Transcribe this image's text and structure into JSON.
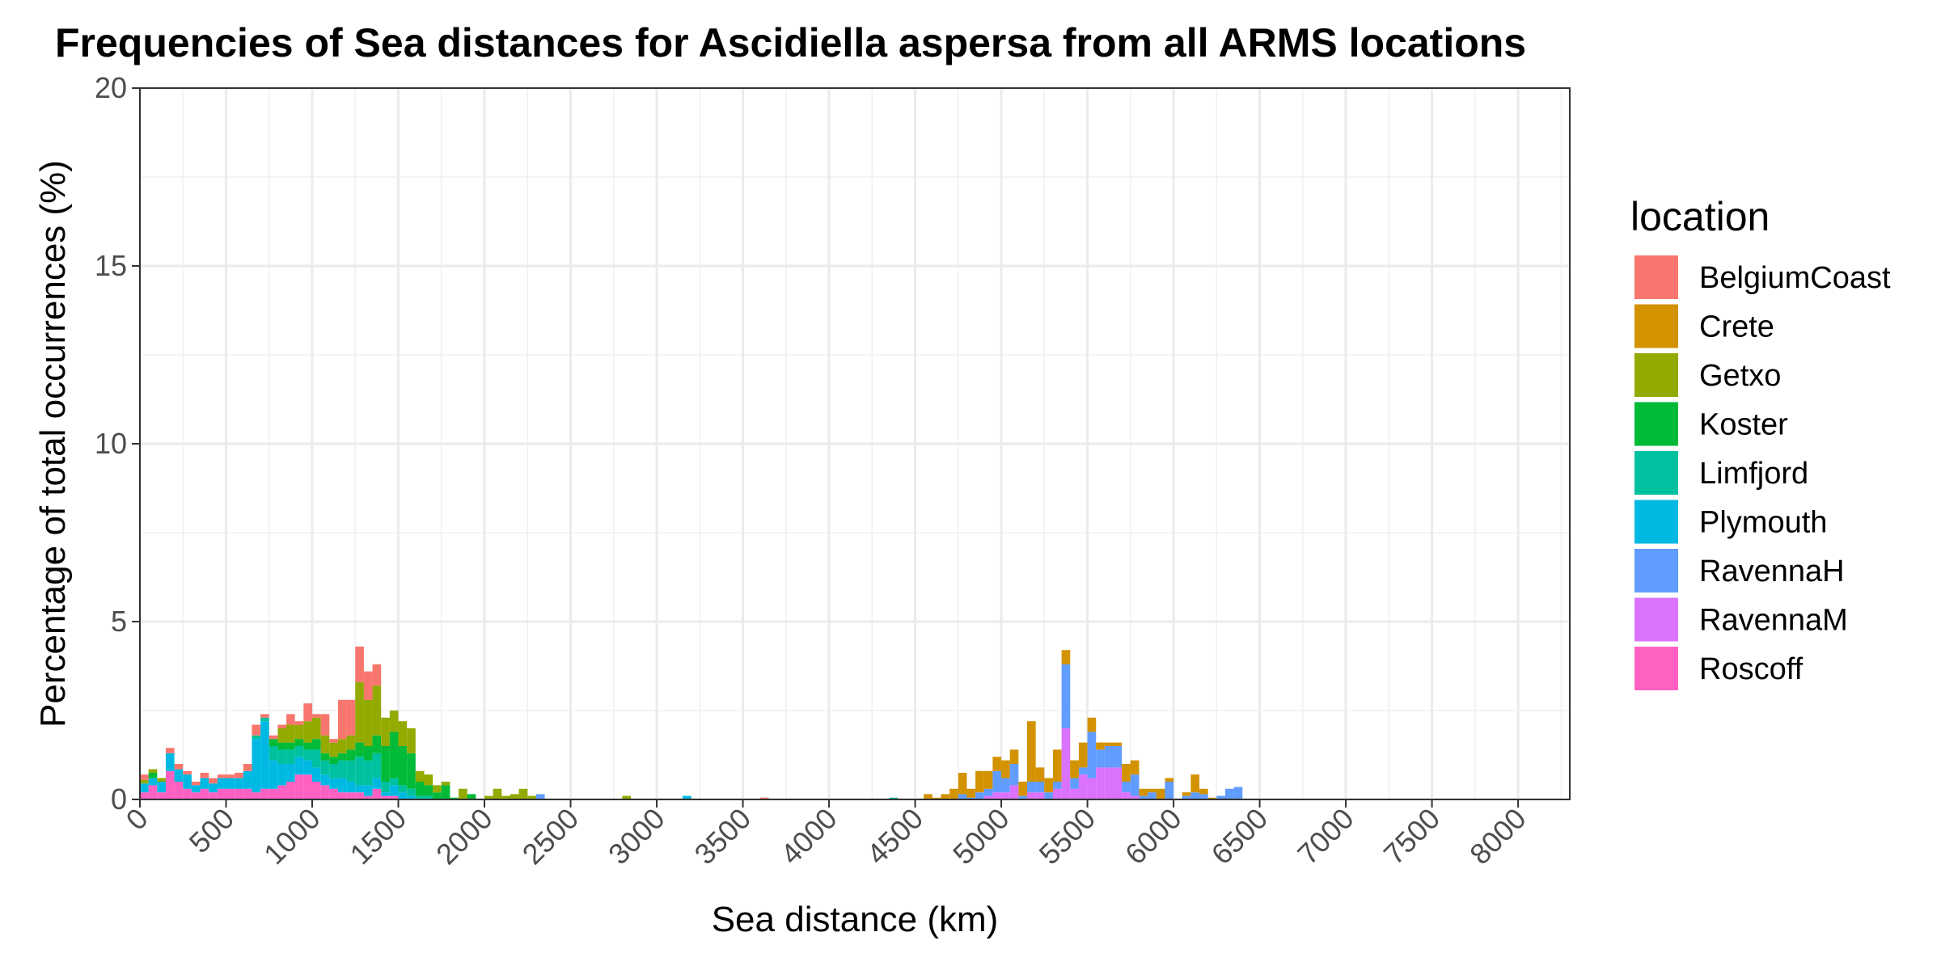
{
  "chart_data": {
    "type": "bar",
    "stacked": true,
    "title": "Frequencies of Sea distances for Ascidiella aspersa from all ARMS locations",
    "xlabel": "Sea distance (km)",
    "ylabel": "Percentage of total occurrences (%)",
    "xlim": [
      0,
      8300
    ],
    "ylim": [
      0,
      20
    ],
    "xticks": [
      0,
      500,
      1000,
      1500,
      2000,
      2500,
      3000,
      3500,
      4000,
      4500,
      5000,
      5500,
      6000,
      6500,
      7000,
      7500,
      8000
    ],
    "xtick_labels": [
      "0",
      "500",
      "1000",
      "1500",
      "2000",
      "2500",
      "3000",
      "3500",
      "4000",
      "4500",
      "5000",
      "5500",
      "6000",
      "6500",
      "7000",
      "7500",
      "8000"
    ],
    "yticks": [
      0,
      5,
      10,
      15,
      20
    ],
    "ytick_labels": [
      "0",
      "5",
      "10",
      "15",
      "20"
    ],
    "grid": true,
    "bin_width": 50,
    "legend": {
      "title": "location",
      "position": "right",
      "entries": [
        {
          "name": "BelgiumCoast",
          "color": "#F8766D"
        },
        {
          "name": "Crete",
          "color": "#D39200"
        },
        {
          "name": "Getxo",
          "color": "#93AA00"
        },
        {
          "name": "Koster",
          "color": "#00BA38"
        },
        {
          "name": "Limfjord",
          "color": "#00C19F"
        },
        {
          "name": "Plymouth",
          "color": "#00B9E3"
        },
        {
          "name": "RavennaH",
          "color": "#619CFF"
        },
        {
          "name": "RavennaM",
          "color": "#DB72FB"
        },
        {
          "name": "Roscoff",
          "color": "#FF61C3"
        }
      ]
    },
    "series_order": [
      "BelgiumCoast",
      "Crete",
      "Getxo",
      "Koster",
      "Limfjord",
      "Plymouth",
      "RavennaH",
      "RavennaM",
      "Roscoff"
    ],
    "bins": [
      {
        "x": 25,
        "values": {
          "Roscoff": 0.2,
          "Plymouth": 0.25,
          "Getxo": 0.1,
          "BelgiumCoast": 0.15
        }
      },
      {
        "x": 75,
        "values": {
          "Roscoff": 0.4,
          "Plymouth": 0.2,
          "Koster": 0.15,
          "Getxo": 0.1
        }
      },
      {
        "x": 125,
        "values": {
          "Roscoff": 0.2,
          "Plymouth": 0.3,
          "Getxo": 0.1
        }
      },
      {
        "x": 175,
        "values": {
          "Roscoff": 0.8,
          "Plymouth": 0.5,
          "BelgiumCoast": 0.15
        }
      },
      {
        "x": 225,
        "values": {
          "Roscoff": 0.5,
          "Plymouth": 0.35,
          "BelgiumCoast": 0.15
        }
      },
      {
        "x": 275,
        "values": {
          "Roscoff": 0.3,
          "Plymouth": 0.4,
          "BelgiumCoast": 0.1
        }
      },
      {
        "x": 325,
        "values": {
          "Roscoff": 0.2,
          "Plymouth": 0.2,
          "BelgiumCoast": 0.1
        }
      },
      {
        "x": 375,
        "values": {
          "Roscoff": 0.3,
          "Plymouth": 0.3,
          "BelgiumCoast": 0.15
        }
      },
      {
        "x": 425,
        "values": {
          "Roscoff": 0.2,
          "Plymouth": 0.25,
          "BelgiumCoast": 0.15
        }
      },
      {
        "x": 475,
        "values": {
          "Roscoff": 0.3,
          "Plymouth": 0.3,
          "BelgiumCoast": 0.1
        }
      },
      {
        "x": 525,
        "values": {
          "Roscoff": 0.3,
          "Plymouth": 0.3,
          "BelgiumCoast": 0.1
        }
      },
      {
        "x": 575,
        "values": {
          "Roscoff": 0.3,
          "Plymouth": 0.3,
          "BelgiumCoast": 0.15
        }
      },
      {
        "x": 625,
        "values": {
          "Roscoff": 0.3,
          "Plymouth": 0.5,
          "BelgiumCoast": 0.2
        }
      },
      {
        "x": 675,
        "values": {
          "Roscoff": 0.2,
          "Plymouth": 1.5,
          "Limfjord": 0.1,
          "BelgiumCoast": 0.3
        }
      },
      {
        "x": 725,
        "values": {
          "Roscoff": 0.3,
          "Plymouth": 1.9,
          "Limfjord": 0.1,
          "BelgiumCoast": 0.1
        }
      },
      {
        "x": 775,
        "values": {
          "Roscoff": 0.3,
          "Plymouth": 0.8,
          "Limfjord": 0.4,
          "Koster": 0.2,
          "BelgiumCoast": 0.1
        }
      },
      {
        "x": 825,
        "values": {
          "Roscoff": 0.4,
          "Plymouth": 0.6,
          "Limfjord": 0.4,
          "Koster": 0.2,
          "Getxo": 0.4,
          "BelgiumCoast": 0.1
        }
      },
      {
        "x": 875,
        "values": {
          "Roscoff": 0.5,
          "Plymouth": 0.5,
          "Limfjord": 0.4,
          "Koster": 0.2,
          "Getxo": 0.5,
          "BelgiumCoast": 0.3
        }
      },
      {
        "x": 925,
        "values": {
          "Roscoff": 0.7,
          "Plymouth": 0.5,
          "Limfjord": 0.3,
          "Koster": 0.2,
          "Getxo": 0.4,
          "BelgiumCoast": 0.1
        }
      },
      {
        "x": 975,
        "values": {
          "Roscoff": 0.7,
          "Plymouth": 0.4,
          "Limfjord": 0.3,
          "Koster": 0.2,
          "Getxo": 0.6,
          "BelgiumCoast": 0.5
        }
      },
      {
        "x": 1025,
        "values": {
          "Roscoff": 0.5,
          "Plymouth": 0.4,
          "Limfjord": 0.5,
          "Koster": 0.3,
          "Getxo": 0.6,
          "BelgiumCoast": 0.1
        }
      },
      {
        "x": 1075,
        "values": {
          "Roscoff": 0.4,
          "Plymouth": 0.3,
          "Limfjord": 0.4,
          "Koster": 0.2,
          "Getxo": 0.5,
          "BelgiumCoast": 0.6
        }
      },
      {
        "x": 1125,
        "values": {
          "Roscoff": 0.3,
          "Plymouth": 0.3,
          "Limfjord": 0.4,
          "Koster": 0.2,
          "Getxo": 0.4,
          "BelgiumCoast": 0.1
        }
      },
      {
        "x": 1175,
        "values": {
          "Roscoff": 0.2,
          "Plymouth": 0.4,
          "Limfjord": 0.5,
          "Koster": 0.2,
          "Getxo": 0.4,
          "BelgiumCoast": 1.1
        }
      },
      {
        "x": 1225,
        "values": {
          "Roscoff": 0.2,
          "Plymouth": 0.3,
          "Limfjord": 0.6,
          "Koster": 0.3,
          "Getxo": 0.4,
          "BelgiumCoast": 1.0
        }
      },
      {
        "x": 1275,
        "values": {
          "Roscoff": 0.2,
          "Plymouth": 0.2,
          "Limfjord": 0.8,
          "Koster": 0.4,
          "Getxo": 1.7,
          "BelgiumCoast": 1.0
        }
      },
      {
        "x": 1325,
        "values": {
          "Roscoff": 0.1,
          "Plymouth": 0.3,
          "Limfjord": 0.7,
          "Koster": 0.4,
          "Getxo": 1.3,
          "BelgiumCoast": 0.8
        }
      },
      {
        "x": 1375,
        "values": {
          "Roscoff": 0.3,
          "Plymouth": 0.3,
          "Limfjord": 0.7,
          "Koster": 0.5,
          "Getxo": 1.4,
          "BelgiumCoast": 0.6
        }
      },
      {
        "x": 1425,
        "values": {
          "Roscoff": 0.1,
          "Plymouth": 0.1,
          "Limfjord": 0.3,
          "Koster": 1.0,
          "Getxo": 0.8
        }
      },
      {
        "x": 1475,
        "values": {
          "Roscoff": 0.1,
          "Plymouth": 0.3,
          "Limfjord": 0.2,
          "Koster": 1.3,
          "Getxo": 0.6
        }
      },
      {
        "x": 1525,
        "values": {
          "Plymouth": 0.2,
          "Limfjord": 0.2,
          "Koster": 1.1,
          "Getxo": 0.7
        }
      },
      {
        "x": 1575,
        "values": {
          "Plymouth": 0.1,
          "Limfjord": 0.2,
          "Koster": 1.0,
          "Getxo": 0.7
        }
      },
      {
        "x": 1625,
        "values": {
          "Limfjord": 0.1,
          "Koster": 0.4,
          "Getxo": 0.3
        }
      },
      {
        "x": 1675,
        "values": {
          "Limfjord": 0.1,
          "Koster": 0.3,
          "Getxo": 0.3
        }
      },
      {
        "x": 1725,
        "values": {
          "Koster": 0.2,
          "Getxo": 0.2
        }
      },
      {
        "x": 1775,
        "values": {
          "Koster": 0.4,
          "Getxo": 0.1
        }
      },
      {
        "x": 1825,
        "values": {
          "Koster": 0.05
        }
      },
      {
        "x": 1875,
        "values": {
          "Getxo": 0.3
        }
      },
      {
        "x": 1925,
        "values": {
          "Koster": 0.15
        }
      },
      {
        "x": 2025,
        "values": {
          "Getxo": 0.1
        }
      },
      {
        "x": 2075,
        "values": {
          "Getxo": 0.3
        }
      },
      {
        "x": 2125,
        "values": {
          "Getxo": 0.1
        }
      },
      {
        "x": 2175,
        "values": {
          "Getxo": 0.15
        }
      },
      {
        "x": 2225,
        "values": {
          "Getxo": 0.3
        }
      },
      {
        "x": 2275,
        "values": {
          "Getxo": 0.1
        }
      },
      {
        "x": 2325,
        "values": {
          "RavennaH": 0.15
        }
      },
      {
        "x": 2825,
        "values": {
          "Getxo": 0.1
        }
      },
      {
        "x": 3175,
        "values": {
          "Plymouth": 0.1
        }
      },
      {
        "x": 3625,
        "values": {
          "BelgiumCoast": 0.05
        }
      },
      {
        "x": 4375,
        "values": {
          "Limfjord": 0.05
        }
      },
      {
        "x": 4575,
        "values": {
          "Crete": 0.15
        }
      },
      {
        "x": 4625,
        "values": {
          "Crete": 0.05
        }
      },
      {
        "x": 4675,
        "values": {
          "Crete": 0.15
        }
      },
      {
        "x": 4725,
        "values": {
          "Crete": 0.3
        }
      },
      {
        "x": 4775,
        "values": {
          "Crete": 0.6,
          "RavennaH": 0.15
        }
      },
      {
        "x": 4825,
        "values": {
          "Crete": 0.25,
          "RavennaH": 0.05
        }
      },
      {
        "x": 4875,
        "values": {
          "Crete": 0.6,
          "RavennaH": 0.2
        }
      },
      {
        "x": 4925,
        "values": {
          "Crete": 0.5,
          "RavennaH": 0.2,
          "RavennaM": 0.1
        }
      },
      {
        "x": 4975,
        "values": {
          "Crete": 0.4,
          "RavennaH": 0.6,
          "RavennaM": 0.2
        }
      },
      {
        "x": 5025,
        "values": {
          "Crete": 0.5,
          "RavennaH": 0.4,
          "RavennaM": 0.2
        }
      },
      {
        "x": 5075,
        "values": {
          "Crete": 0.4,
          "RavennaH": 0.6,
          "RavennaM": 0.4
        }
      },
      {
        "x": 5125,
        "values": {
          "Crete": 0.4,
          "RavennaH": 0.1
        }
      },
      {
        "x": 5175,
        "values": {
          "Crete": 1.7,
          "RavennaH": 0.3,
          "RavennaM": 0.2
        }
      },
      {
        "x": 5225,
        "values": {
          "Crete": 0.4,
          "RavennaH": 0.3,
          "RavennaM": 0.2
        }
      },
      {
        "x": 5275,
        "values": {
          "Crete": 0.4,
          "RavennaH": 0.2
        }
      },
      {
        "x": 5325,
        "values": {
          "Crete": 0.9,
          "RavennaH": 0.2,
          "RavennaM": 0.3
        }
      },
      {
        "x": 5375,
        "values": {
          "Crete": 0.4,
          "RavennaH": 1.8,
          "RavennaM": 2.0
        }
      },
      {
        "x": 5425,
        "values": {
          "Crete": 0.5,
          "RavennaH": 0.3,
          "RavennaM": 0.3
        }
      },
      {
        "x": 5475,
        "values": {
          "Crete": 0.7,
          "RavennaH": 0.2,
          "RavennaM": 0.7
        }
      },
      {
        "x": 5525,
        "values": {
          "Crete": 0.4,
          "RavennaH": 1.3,
          "RavennaM": 0.6
        }
      },
      {
        "x": 5575,
        "values": {
          "Crete": 0.2,
          "RavennaH": 0.5,
          "RavennaM": 0.9
        }
      },
      {
        "x": 5625,
        "values": {
          "Crete": 0.1,
          "RavennaH": 0.6,
          "RavennaM": 0.9
        }
      },
      {
        "x": 5675,
        "values": {
          "Crete": 0.1,
          "RavennaH": 0.6,
          "RavennaM": 0.9
        }
      },
      {
        "x": 5725,
        "values": {
          "Crete": 0.5,
          "RavennaH": 0.3,
          "RavennaM": 0.2
        }
      },
      {
        "x": 5775,
        "values": {
          "Crete": 0.4,
          "RavennaH": 0.6,
          "RavennaM": 0.1
        }
      },
      {
        "x": 5825,
        "values": {
          "Crete": 0.2,
          "RavennaH": 0.1
        }
      },
      {
        "x": 5875,
        "values": {
          "Crete": 0.1,
          "RavennaH": 0.2
        }
      },
      {
        "x": 5925,
        "values": {
          "Crete": 0.3
        }
      },
      {
        "x": 5975,
        "values": {
          "Crete": 0.1,
          "RavennaH": 0.5
        }
      },
      {
        "x": 6075,
        "values": {
          "Crete": 0.1,
          "RavennaH": 0.1
        }
      },
      {
        "x": 6125,
        "values": {
          "Crete": 0.5,
          "RavennaH": 0.2
        }
      },
      {
        "x": 6175,
        "values": {
          "Crete": 0.15,
          "RavennaH": 0.15
        }
      },
      {
        "x": 6225,
        "values": {
          "Crete": 0.05
        }
      },
      {
        "x": 6275,
        "values": {
          "RavennaH": 0.1
        }
      },
      {
        "x": 6325,
        "values": {
          "RavennaH": 0.3
        }
      },
      {
        "x": 6375,
        "values": {
          "RavennaH": 0.35
        }
      }
    ]
  }
}
